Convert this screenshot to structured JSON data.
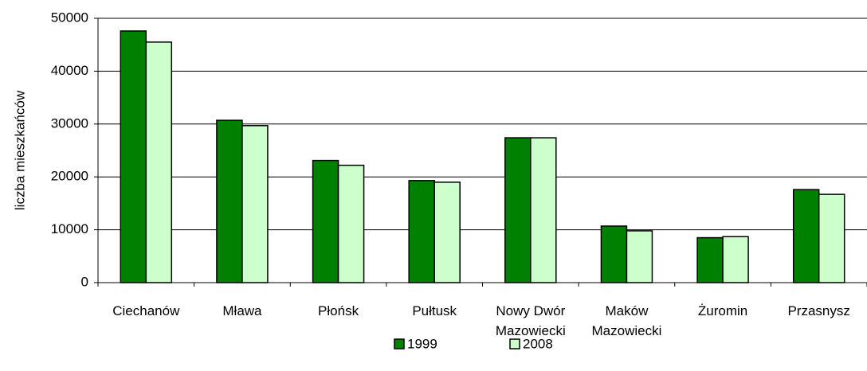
{
  "chart_data": {
    "type": "bar",
    "y_label": "liczba mieszkańców",
    "categories": [
      "Ciechanów",
      "Mława",
      "Płońsk",
      "Pułtusk",
      "Nowy Dwór Mazowiecki",
      "Maków Mazowiecki",
      "Żuromin",
      "Przasnysz"
    ],
    "series": [
      {
        "name": "1999",
        "color": "#008000",
        "values": [
          47600,
          30700,
          23100,
          19300,
          27400,
          10700,
          8500,
          17600
        ]
      },
      {
        "name": "2008",
        "color": "#ccffcc",
        "values": [
          45500,
          29700,
          22200,
          19000,
          27400,
          9800,
          8700,
          16700
        ]
      }
    ],
    "ylim": [
      0,
      50000
    ],
    "yticks": [
      0,
      10000,
      20000,
      30000,
      40000,
      50000
    ],
    "grid": true,
    "legend": "bottom"
  }
}
